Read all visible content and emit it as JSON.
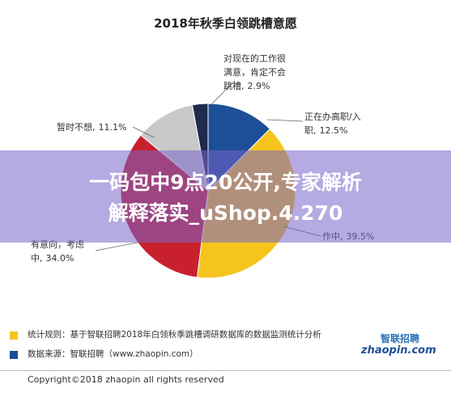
{
  "chart_data": {
    "type": "pie",
    "title": "2018年秋季白领跳槽意愿",
    "categories": [
      "正在办高职/入职,",
      "作中,",
      "有意向，考虑中,",
      "暂时不想,",
      "对现在的工作很满意，肯定不会跳槽,"
    ],
    "values": [
      12.5,
      39.5,
      34.0,
      11.1,
      2.9
    ],
    "value_labels": [
      "12.5%",
      "39.5%",
      "34.0%",
      "11.1%",
      "2.9%"
    ],
    "colors": [
      "#1c4f97",
      "#f6c51d",
      "#c9202e",
      "#c9c9c9",
      "#1f2b4d"
    ]
  },
  "banner": {
    "lines": [
      "一码包中9点20公开,专家解析",
      "解释落实_uShop.4.270"
    ]
  },
  "notes": [
    "统计规则：基于智联招聘2018年白领秋季跳槽调研数据库的数据监测统计分析",
    "数据来源：智联招聘（www.zhaopin.com）"
  ],
  "logo": {
    "name": "智联招聘",
    "site": "zhaopin.com"
  },
  "copyright": "Copyright©2018 zhaopin all rights reserved"
}
